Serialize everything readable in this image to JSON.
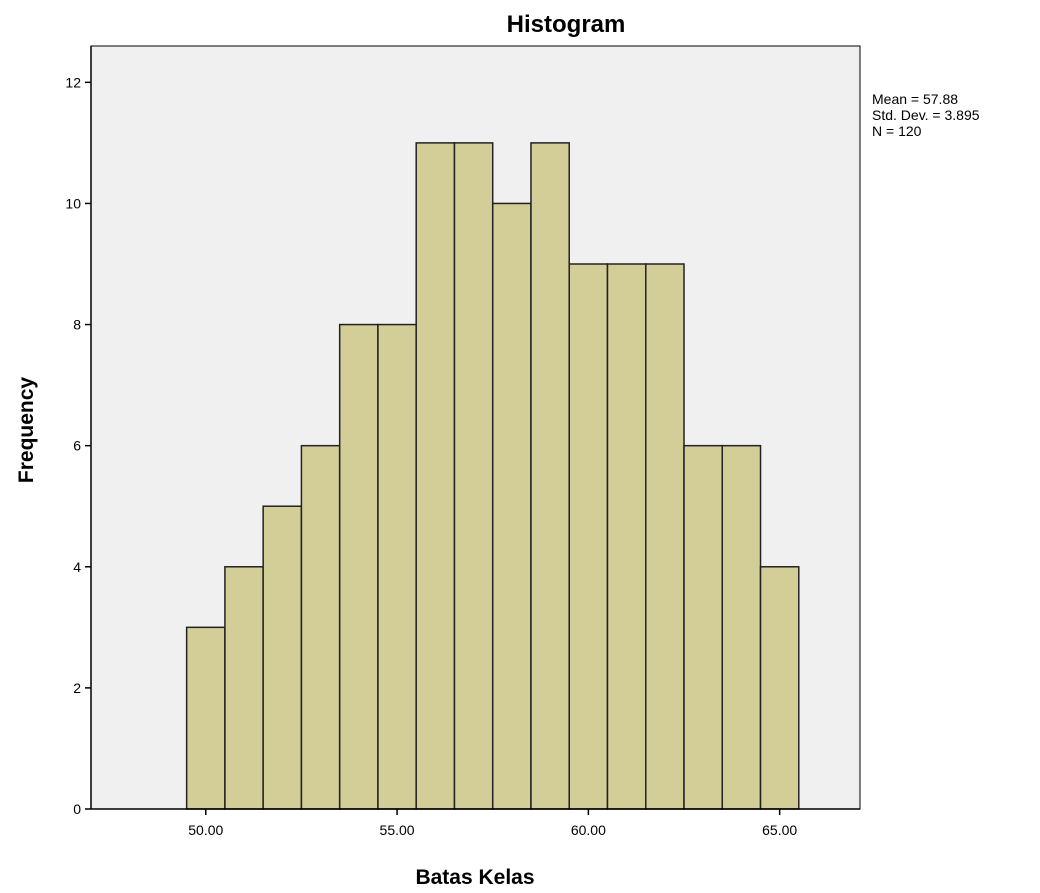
{
  "chart_data": {
    "type": "bar",
    "title": "Histogram",
    "xlabel": "Batas Kelas",
    "ylabel": "Frequency",
    "bin_width": 1,
    "bins": [
      {
        "x_start": 49.5,
        "x_end": 50.5,
        "count": 3
      },
      {
        "x_start": 50.5,
        "x_end": 51.5,
        "count": 4
      },
      {
        "x_start": 51.5,
        "x_end": 52.5,
        "count": 5
      },
      {
        "x_start": 52.5,
        "x_end": 53.5,
        "count": 6
      },
      {
        "x_start": 53.5,
        "x_end": 54.5,
        "count": 8
      },
      {
        "x_start": 54.5,
        "x_end": 55.5,
        "count": 8
      },
      {
        "x_start": 55.5,
        "x_end": 56.5,
        "count": 11
      },
      {
        "x_start": 56.5,
        "x_end": 57.5,
        "count": 11
      },
      {
        "x_start": 57.5,
        "x_end": 58.5,
        "count": 10
      },
      {
        "x_start": 58.5,
        "x_end": 59.5,
        "count": 11
      },
      {
        "x_start": 59.5,
        "x_end": 60.5,
        "count": 9
      },
      {
        "x_start": 60.5,
        "x_end": 61.5,
        "count": 9
      },
      {
        "x_start": 61.5,
        "x_end": 62.5,
        "count": 9
      },
      {
        "x_start": 62.5,
        "x_end": 63.5,
        "count": 6
      },
      {
        "x_start": 63.5,
        "x_end": 64.5,
        "count": 6
      },
      {
        "x_start": 64.5,
        "x_end": 65.5,
        "count": 4
      }
    ],
    "xlim": [
      47.0,
      67.1
    ],
    "ylim": [
      0,
      12.6
    ],
    "x_ticks": [
      {
        "value": 50,
        "label": "50.00"
      },
      {
        "value": 55,
        "label": "55.00"
      },
      {
        "value": 60,
        "label": "60.00"
      },
      {
        "value": 65,
        "label": "65.00"
      }
    ],
    "y_ticks": [
      {
        "value": 0,
        "label": "0"
      },
      {
        "value": 2,
        "label": "2"
      },
      {
        "value": 4,
        "label": "4"
      },
      {
        "value": 6,
        "label": "6"
      },
      {
        "value": 8,
        "label": "8"
      },
      {
        "value": 10,
        "label": "10"
      },
      {
        "value": 12,
        "label": "12"
      }
    ],
    "stats": [
      "Mean = 57.88",
      "Std. Dev. = 3.895",
      "N = 120"
    ],
    "grid": false,
    "legend": "none",
    "colors": {
      "bar_fill": "#d3ce97",
      "bar_stroke": "#222222",
      "plot_bg": "#f0f0f0",
      "axis": "#000000"
    }
  }
}
